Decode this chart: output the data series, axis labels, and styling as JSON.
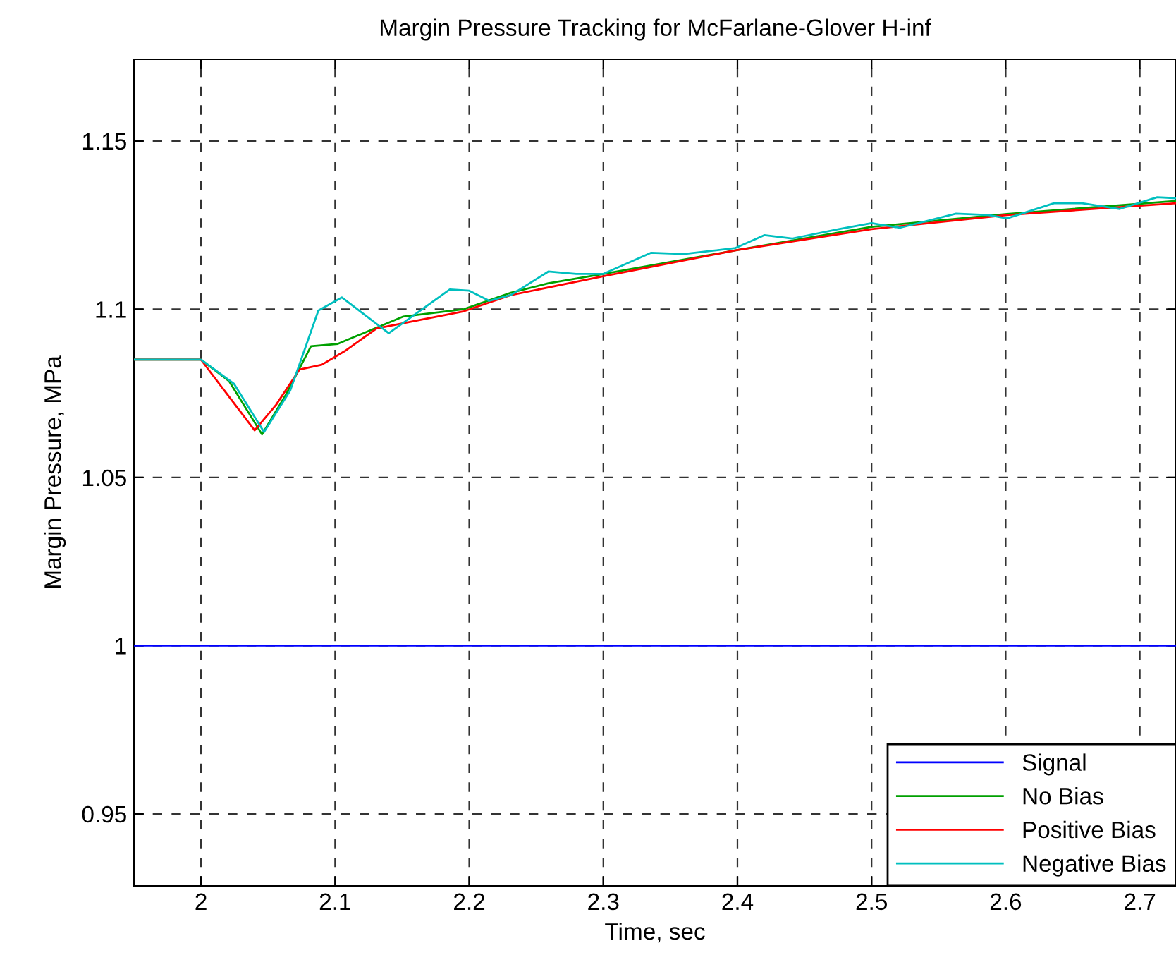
{
  "chart_data": {
    "type": "line",
    "title": "Margin Pressure Tracking for McFarlane-Glover H-inf",
    "xlabel": "Time, sec",
    "ylabel": "Margin Pressure, MPa",
    "xlim": [
      1.95,
      2.727
    ],
    "ylim": [
      0.9286,
      1.1743
    ],
    "xticks": [
      2,
      2.1,
      2.2,
      2.3,
      2.4,
      2.5,
      2.6,
      2.7
    ],
    "yticks": [
      0.95,
      1,
      1.05,
      1.1,
      1.15
    ],
    "grid": true,
    "legend": "bottom right",
    "line_style": "solid",
    "marker": "none",
    "series": [
      {
        "name": "Signal",
        "color": "#0000ff",
        "x": [
          1.95,
          2.727
        ],
        "values": [
          1,
          1
        ]
      },
      {
        "name": "No Bias",
        "color": "#00a000",
        "x": [
          1.95,
          2.0,
          2.021,
          2.0455,
          2.063,
          2.082,
          2.102,
          2.1505,
          2.196,
          2.231,
          2.259,
          2.3,
          2.3986,
          2.5,
          2.601,
          2.727
        ],
        "values": [
          1.085,
          1.085,
          1.0786,
          1.0628,
          1.0744,
          1.089,
          1.0897,
          1.0978,
          1.1,
          1.1049,
          1.1077,
          1.1105,
          1.1175,
          1.1245,
          1.1283,
          1.1322
        ]
      },
      {
        "name": "Positive Bias",
        "color": "#ff0000",
        "x": [
          1.95,
          2.0,
          2.0175,
          2.04,
          2.056,
          2.0735,
          2.09,
          2.107,
          2.131,
          2.196,
          2.231,
          2.3,
          2.3986,
          2.5,
          2.601,
          2.727
        ],
        "values": [
          1.085,
          1.085,
          1.0758,
          1.064,
          1.0716,
          1.0821,
          1.0835,
          1.0875,
          1.0943,
          1.0994,
          1.1042,
          1.1098,
          1.1175,
          1.1238,
          1.128,
          1.1315
        ]
      },
      {
        "name": "Negative Bias",
        "color": "#00bfbf",
        "x": [
          1.95,
          2.0,
          2.0245,
          2.047,
          2.0665,
          2.0875,
          2.105,
          2.14,
          2.1855,
          2.2,
          2.215,
          2.231,
          2.259,
          2.2797,
          2.3,
          2.3357,
          2.36,
          2.3986,
          2.42,
          2.4406,
          2.4755,
          2.5,
          2.521,
          2.563,
          2.587,
          2.601,
          2.636,
          2.657,
          2.685,
          2.713,
          2.727
        ],
        "values": [
          1.085,
          1.085,
          1.0779,
          1.0635,
          1.0758,
          1.0996,
          1.1035,
          1.0929,
          1.1059,
          1.1055,
          1.1025,
          1.1042,
          1.1112,
          1.1105,
          1.1105,
          1.1168,
          1.1164,
          1.1182,
          1.122,
          1.121,
          1.1238,
          1.1256,
          1.1242,
          1.1284,
          1.128,
          1.127,
          1.1315,
          1.1315,
          1.1298,
          1.1333,
          1.133
        ]
      }
    ]
  }
}
